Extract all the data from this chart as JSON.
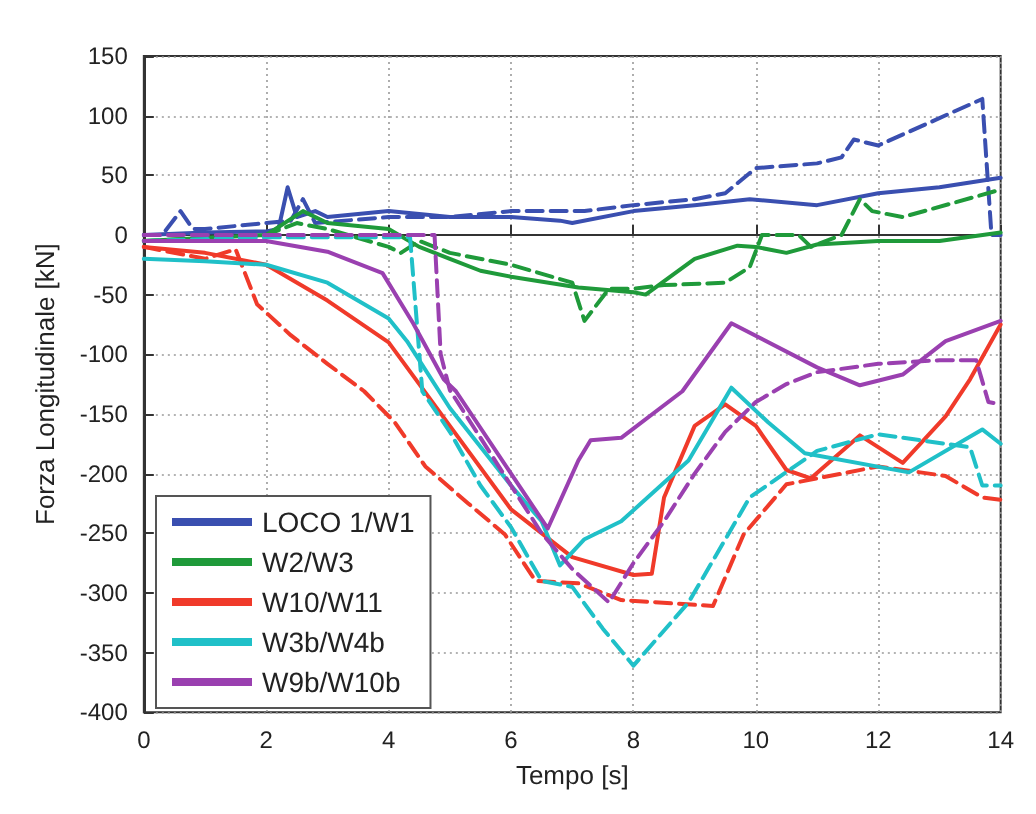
{
  "chart_data": {
    "type": "line",
    "xlabel": "Tempo [s]",
    "ylabel": "Forza Longitudinale [kN]",
    "xlim": [
      0,
      14
    ],
    "xticks": [
      0,
      2,
      4,
      6,
      8,
      10,
      12,
      14
    ],
    "ylim": [
      -400,
      150
    ],
    "yticks": [
      -400,
      -350,
      -300,
      -250,
      -200,
      -150,
      -100,
      -50,
      0,
      50,
      100,
      150
    ],
    "grid": true,
    "legend": "bottom left",
    "marker": "none",
    "series": [
      {
        "name": "LOCO 1/W1",
        "color": "#3a4fb0",
        "line_style": "solid",
        "x": [
          0,
          1,
          2,
          2.2,
          2.35,
          2.5,
          2.8,
          3,
          4,
          5,
          6,
          6.8,
          7,
          8,
          9,
          9.9,
          11,
          12,
          13,
          14
        ],
        "values": [
          0,
          2,
          3,
          5,
          40,
          15,
          20,
          15,
          20,
          15,
          15,
          12,
          10,
          20,
          25,
          30,
          25,
          35,
          40,
          48
        ]
      },
      {
        "color": "#3a4fb0",
        "line_style": "dashed",
        "x": [
          0,
          0.3,
          0.6,
          0.8,
          1,
          2,
          2.4,
          2.6,
          2.8,
          4,
          5,
          6,
          6.8,
          7.2,
          8,
          9,
          9.5,
          10,
          11,
          11.4,
          11.6,
          12,
          13.7,
          13.85,
          14
        ],
        "values": [
          0,
          0,
          20,
          5,
          5,
          10,
          12,
          30,
          10,
          15,
          15,
          20,
          20,
          20,
          25,
          30,
          35,
          56,
          60,
          65,
          80,
          75,
          114,
          0,
          0
        ]
      },
      {
        "name": "W2/W3",
        "color": "#1f9a3a",
        "line_style": "solid",
        "x": [
          0,
          1.2,
          2,
          2.6,
          3,
          4,
          4.5,
          5,
          5.5,
          6,
          7.1,
          8,
          8.2,
          9,
          9.7,
          10,
          10.5,
          11,
          12,
          13,
          14
        ],
        "values": [
          -5,
          -2,
          0,
          20,
          10,
          5,
          -10,
          -20,
          -30,
          -35,
          -44,
          -48,
          -50,
          -20,
          -9,
          -10,
          -15,
          -8,
          -5,
          -5,
          2
        ]
      },
      {
        "color": "#1f9a3a",
        "line_style": "dashed",
        "x": [
          0,
          2,
          2.5,
          3,
          4,
          4.2,
          4.5,
          5,
          6,
          7,
          7.2,
          7.6,
          8,
          8.5,
          9.5,
          9.9,
          10.1,
          10.7,
          10.9,
          11.4,
          11.7,
          11.9,
          12.4,
          14
        ],
        "values": [
          -5,
          0,
          10,
          5,
          -10,
          -15,
          -5,
          -15,
          -25,
          -40,
          -72,
          -45,
          -45,
          -42,
          -40,
          -27,
          0,
          0,
          -10,
          0,
          30,
          20,
          15,
          38
        ]
      },
      {
        "name": "W10/W11",
        "color": "#f03a2a",
        "line_style": "solid",
        "x": [
          0,
          1,
          2,
          3,
          4,
          5,
          6,
          7,
          8,
          8.3,
          8.5,
          9,
          9.5,
          10,
          10.5,
          10.9,
          11.7,
          12.4,
          13.1,
          13.5,
          14
        ],
        "values": [
          -10,
          -15,
          -25,
          -55,
          -90,
          -160,
          -230,
          -270,
          -285,
          -284,
          -220,
          -160,
          -142,
          -160,
          -197,
          -204,
          -168,
          -191,
          -152,
          -121,
          -75
        ]
      },
      {
        "color": "#f03a2a",
        "line_style": "dashed",
        "x": [
          0,
          1,
          1.5,
          1.85,
          2.4,
          3,
          3.6,
          4.1,
          4.6,
          5.3,
          5.9,
          6.4,
          7.1,
          7.8,
          9.3,
          9.8,
          10.5,
          11.2,
          12,
          13.1,
          13.7,
          14
        ],
        "values": [
          -10,
          -20,
          -12,
          -58,
          -84,
          -108,
          -131,
          -157,
          -194,
          -225,
          -251,
          -290,
          -292,
          -306,
          -311,
          -251,
          -209,
          -202,
          -194,
          -202,
          -220,
          -222
        ]
      },
      {
        "name": "W3b/W4b",
        "color": "#20c0c8",
        "line_style": "solid",
        "x": [
          0,
          1,
          2,
          3,
          4,
          4.3,
          5,
          6,
          6.5,
          6.8,
          7.2,
          7.8,
          8.9,
          9.6,
          10.2,
          10.8,
          12.5,
          13.7,
          14
        ],
        "values": [
          -20,
          -22,
          -25,
          -40,
          -70,
          -89,
          -145,
          -210,
          -240,
          -277,
          -255,
          -240,
          -189,
          -128,
          -157,
          -183,
          -199,
          -163,
          -175
        ]
      },
      {
        "color": "#20c0c8",
        "line_style": "dashed",
        "x": [
          0,
          2,
          4.35,
          4.55,
          5,
          5.5,
          6,
          6.5,
          7,
          7.5,
          8,
          8.9,
          9.9,
          11,
          12,
          13.5,
          13.7,
          14
        ],
        "values": [
          -5,
          -2,
          -2,
          -131,
          -165,
          -210,
          -245,
          -290,
          -295,
          -330,
          -361,
          -308,
          -220,
          -181,
          -167,
          -178,
          -210,
          -210
        ]
      },
      {
        "name": "W9b/W10b",
        "color": "#9a40b0",
        "line_style": "solid",
        "x": [
          0,
          2,
          3,
          3.9,
          4.4,
          4.9,
          5.1,
          6,
          6.6,
          7.1,
          7.3,
          7.8,
          8.8,
          9.6,
          11,
          11.7,
          12.4,
          13.1,
          14
        ],
        "values": [
          -5,
          -5,
          -14,
          -32,
          -74,
          -121,
          -131,
          -200,
          -246,
          -189,
          -172,
          -170,
          -131,
          -74,
          -111,
          -126,
          -117,
          -89,
          -72
        ]
      },
      {
        "color": "#9a40b0",
        "line_style": "dashed",
        "x": [
          0,
          4.75,
          4.85,
          5,
          5.5,
          6,
          6.5,
          7,
          7.6,
          8,
          8.5,
          9,
          9.5,
          10,
          10.5,
          11,
          12,
          13,
          13.6,
          13.8,
          14
        ],
        "values": [
          0,
          0,
          -100,
          -130,
          -170,
          -210,
          -250,
          -280,
          -308,
          -275,
          -240,
          -200,
          -165,
          -140,
          -125,
          -115,
          -108,
          -105,
          -105,
          -140,
          -142
        ]
      }
    ]
  }
}
